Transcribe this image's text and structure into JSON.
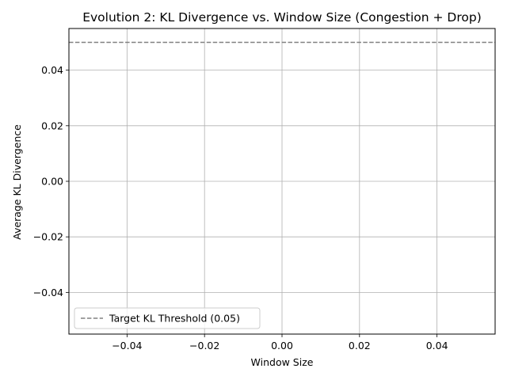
{
  "chart_data": {
    "type": "line",
    "title": "Evolution 2: KL Divergence vs. Window Size (Congestion + Drop)",
    "xlabel": "Window Size",
    "ylabel": "Average KL Divergence",
    "xlim": [
      -0.055,
      0.055
    ],
    "ylim": [
      -0.055,
      0.055
    ],
    "xticks": [
      -0.04,
      -0.02,
      0.0,
      0.02,
      0.04
    ],
    "xtick_labels": [
      "−0.04",
      "−0.02",
      "0.00",
      "0.02",
      "0.04"
    ],
    "yticks": [
      -0.04,
      -0.02,
      0.0,
      0.02,
      0.04
    ],
    "ytick_labels": [
      "−0.04",
      "−0.02",
      "0.00",
      "0.02",
      "0.04"
    ],
    "grid": true,
    "series": [],
    "reference_lines": [
      {
        "name": "Target KL Threshold (0.05)",
        "orientation": "horizontal",
        "value": 0.05,
        "style": "dashed",
        "color": "#808080"
      }
    ],
    "legend": {
      "placement": "lower-left",
      "entries": [
        "Target KL Threshold (0.05)"
      ]
    }
  }
}
